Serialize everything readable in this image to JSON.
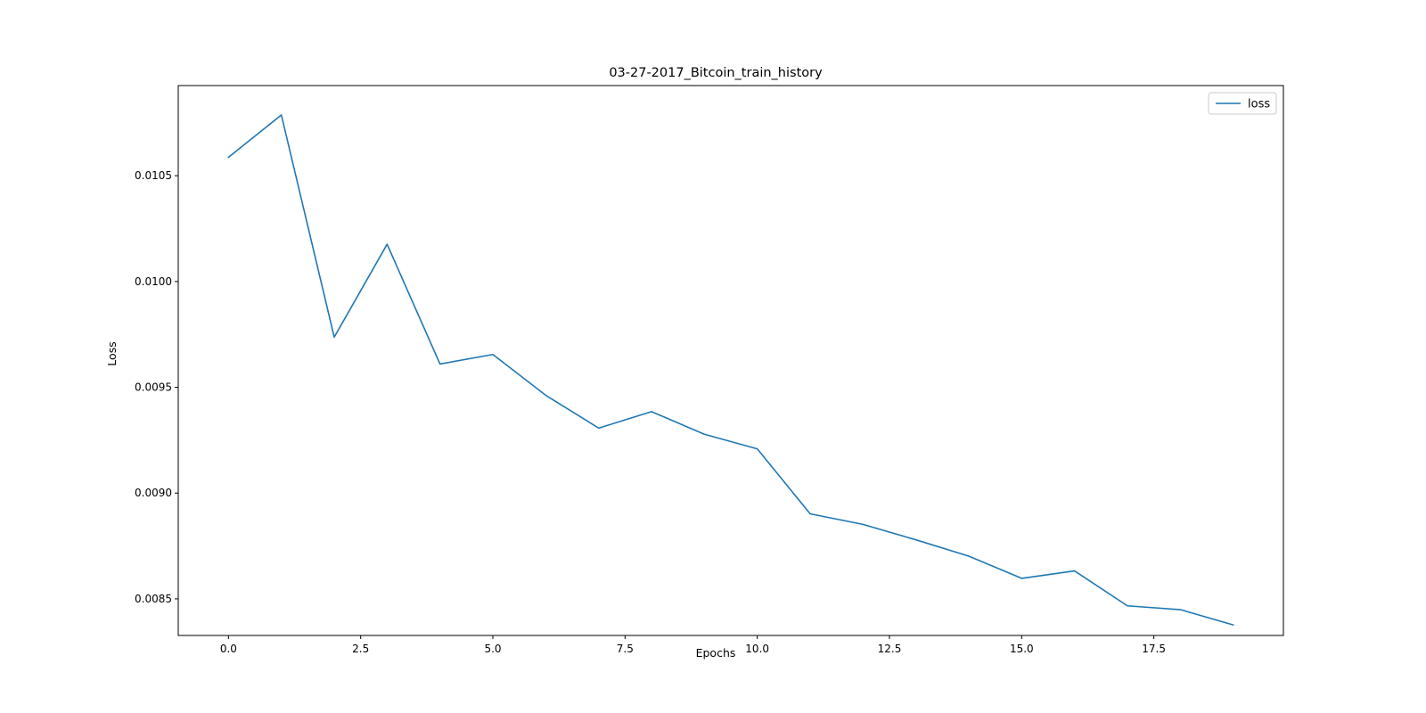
{
  "chart_data": {
    "type": "line",
    "title": "03-27-2017_Bitcoin_train_history",
    "xlabel": "Epochs",
    "ylabel": "Loss",
    "xlim": [
      -0.95,
      19.95
    ],
    "ylim": [
      0.008327,
      0.010926
    ],
    "x_ticks": [
      0.0,
      2.5,
      5.0,
      7.5,
      10.0,
      12.5,
      15.0,
      17.5
    ],
    "x_tick_labels": [
      "0.0",
      "2.5",
      "5.0",
      "7.5",
      "10.0",
      "12.5",
      "15.0",
      "17.5"
    ],
    "y_ticks": [
      0.0085,
      0.009,
      0.0095,
      0.01,
      0.0105
    ],
    "y_tick_labels": [
      "0.0085",
      "0.0090",
      "0.0095",
      "0.0100",
      "0.0105"
    ],
    "grid": false,
    "legend_position": "top-right",
    "series": [
      {
        "name": "loss",
        "color": "#1f77b4",
        "x": [
          0,
          1,
          2,
          3,
          4,
          5,
          6,
          7,
          8,
          9,
          10,
          11,
          12,
          13,
          14,
          15,
          16,
          17,
          18,
          19
        ],
        "y": [
          0.010587,
          0.010787,
          0.009737,
          0.010176,
          0.00961,
          0.009655,
          0.009462,
          0.009307,
          0.009385,
          0.009278,
          0.009209,
          0.008902,
          0.008852,
          0.008779,
          0.008702,
          0.008597,
          0.008632,
          0.008467,
          0.008449,
          0.008377
        ]
      }
    ]
  }
}
